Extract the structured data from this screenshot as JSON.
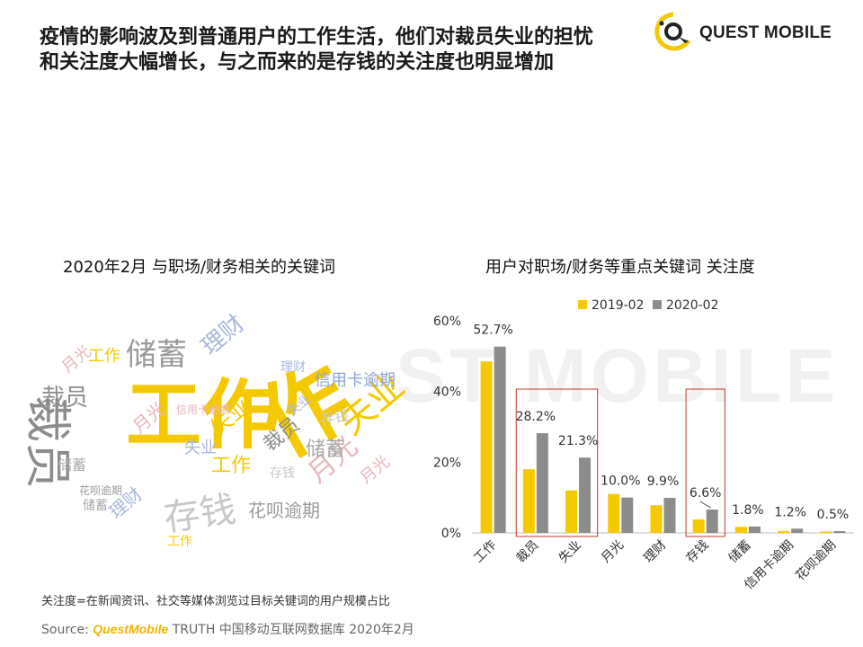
{
  "headline": {
    "line1": "疫情的影响波及到普通用户的工作生活，他们对裁员失业的担忧",
    "line2": "和关注度大幅增长，与之而来的是存钱的关注度也明显增加"
  },
  "logo": {
    "text": "QUEST MOBILE"
  },
  "watermark": "ST MOBILE",
  "wordcloud": {
    "title": "2020年2月 与职场/财务相关的关键词",
    "words": [
      {
        "text": "工作",
        "color": "#f5c900",
        "size": 84,
        "x": 140,
        "y": 420,
        "rot": 0
      },
      {
        "text": "作",
        "color": "#f5c900",
        "size": 96,
        "x": 275,
        "y": 440,
        "rot": -30
      },
      {
        "text": "裁员",
        "color": "#8c8c8c",
        "size": 52,
        "x": 78,
        "y": 440,
        "rot": 90
      },
      {
        "text": "储蓄",
        "color": "#9a9a9a",
        "size": 34,
        "x": 140,
        "y": 378,
        "rot": 0
      },
      {
        "text": "存钱",
        "color": "#c8c8c8",
        "size": 40,
        "x": 180,
        "y": 558,
        "rot": -8
      },
      {
        "text": "失业",
        "color": "#f5c900",
        "size": 40,
        "x": 370,
        "y": 460,
        "rot": -40
      },
      {
        "text": "月光",
        "color": "#e8b7bc",
        "size": 30,
        "x": 338,
        "y": 520,
        "rot": -40
      },
      {
        "text": "理财",
        "color": "#a9b8e0",
        "size": 26,
        "x": 220,
        "y": 380,
        "rot": -40
      },
      {
        "text": "信用卡逾期",
        "color": "#8ea4d9",
        "size": 18,
        "x": 350,
        "y": 415,
        "rot": 0
      },
      {
        "text": "工作",
        "color": "#f5c900",
        "size": 18,
        "x": 98,
        "y": 388,
        "rot": 0
      },
      {
        "text": "月光",
        "color": "#e8b7bc",
        "size": 18,
        "x": 66,
        "y": 405,
        "rot": -40
      },
      {
        "text": "裁员",
        "color": "#8c8c8c",
        "size": 26,
        "x": 46,
        "y": 430,
        "rot": 0
      },
      {
        "text": "储蓄",
        "color": "#a8a8a8",
        "size": 22,
        "x": 340,
        "y": 490,
        "rot": 0
      },
      {
        "text": "花呗逾期",
        "color": "#9a9a9a",
        "size": 20,
        "x": 276,
        "y": 558,
        "rot": 0
      },
      {
        "text": "理财",
        "color": "#a9b8e0",
        "size": 20,
        "x": 118,
        "y": 565,
        "rot": -40
      },
      {
        "text": "存钱",
        "color": "#c8c8c8",
        "size": 16,
        "x": 355,
        "y": 460,
        "rot": -10
      },
      {
        "text": "工作",
        "color": "#f5c900",
        "size": 22,
        "x": 235,
        "y": 508,
        "rot": 0
      },
      {
        "text": "裁员",
        "color": "#8c8c8c",
        "size": 22,
        "x": 290,
        "y": 490,
        "rot": -40
      },
      {
        "text": "储蓄",
        "color": "#a8a8a8",
        "size": 16,
        "x": 64,
        "y": 510,
        "rot": 0
      },
      {
        "text": "月光",
        "color": "#e8b7bc",
        "size": 20,
        "x": 144,
        "y": 470,
        "rot": -40
      },
      {
        "text": "失业",
        "color": "#f5c900",
        "size": 24,
        "x": 230,
        "y": 470,
        "rot": -40
      },
      {
        "text": "失业",
        "color": "#a9b8e0",
        "size": 18,
        "x": 205,
        "y": 490,
        "rot": 0
      },
      {
        "text": "月光",
        "color": "#e8b7bc",
        "size": 18,
        "x": 398,
        "y": 528,
        "rot": -40
      },
      {
        "text": "信用卡逾期",
        "color": "#e8b7bc",
        "size": 12,
        "x": 196,
        "y": 450,
        "rot": 0
      },
      {
        "text": "花呗逾期",
        "color": "#9a9a9a",
        "size": 12,
        "x": 88,
        "y": 540,
        "rot": 0
      },
      {
        "text": "储蓄",
        "color": "#a8a8a8",
        "size": 14,
        "x": 92,
        "y": 556,
        "rot": 0
      },
      {
        "text": "存钱",
        "color": "#c8c8c8",
        "size": 14,
        "x": 300,
        "y": 520,
        "rot": 0
      },
      {
        "text": "工作",
        "color": "#f5c900",
        "size": 14,
        "x": 186,
        "y": 596,
        "rot": 0
      },
      {
        "text": "理财",
        "color": "#a9b8e0",
        "size": 14,
        "x": 312,
        "y": 402,
        "rot": 0
      },
      {
        "text": "失业",
        "color": "#a9b8e0",
        "size": 14,
        "x": 318,
        "y": 455,
        "rot": -40
      }
    ]
  },
  "chart": {
    "title": "用户对职场/财务等重点关键词 关注度",
    "legend": [
      {
        "label": "2019-02",
        "color": "#f5c900"
      },
      {
        "label": "2020-02",
        "color": "#8c8c8c"
      }
    ]
  },
  "chart_data": {
    "type": "bar",
    "title": "用户对职场/财务等重点关键词 关注度",
    "categories": [
      "工作",
      "裁员",
      "失业",
      "月光",
      "理财",
      "存钱",
      "储蓄",
      "信用卡逾期",
      "花呗逾期"
    ],
    "series": [
      {
        "name": "2019-02",
        "color": "#f5c900",
        "values": [
          48.5,
          18.0,
          12.0,
          11.0,
          7.8,
          3.8,
          1.7,
          0.5,
          0.4
        ]
      },
      {
        "name": "2020-02",
        "color": "#8c8c8c",
        "values": [
          52.7,
          28.2,
          21.3,
          10.0,
          9.9,
          6.6,
          1.8,
          1.2,
          0.5
        ]
      }
    ],
    "data_labels": [
      "52.7%",
      "28.2%",
      "21.3%",
      "10.0%",
      "9.9%",
      "6.6%",
      "1.8%",
      "1.2%",
      "0.5%"
    ],
    "ylim": [
      0,
      60
    ],
    "yticks": [
      "0%",
      "20%",
      "40%",
      "60%"
    ],
    "highlight": [
      "裁员",
      "失业",
      "存钱"
    ],
    "highlight_color": "#c0392b",
    "legend_position": "top"
  },
  "footnote": "关注度=在新闻资讯、社交等媒体浏览过目标关键词的用户规模占比",
  "source": {
    "label": "Source:",
    "brand": "QuestMobile",
    "rest": "TRUTH 中国移动互联网数据库 2020年2月"
  }
}
